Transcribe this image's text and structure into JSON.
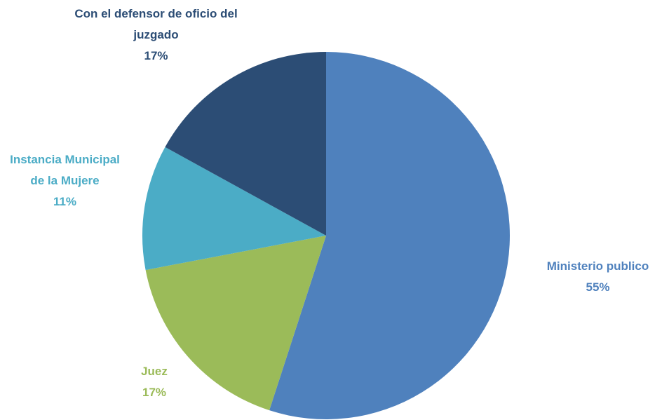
{
  "chart_data": {
    "type": "pie",
    "categories": [
      "Ministerio publico",
      "Juez",
      "Instancia Municipal de la Mujere",
      "Con el defensor de oficio del juzgado"
    ],
    "values": [
      55,
      17,
      11,
      17
    ],
    "value_labels": [
      "55%",
      "17%",
      "11%",
      "17%"
    ],
    "colors": [
      "#4f81bd",
      "#9bbb59",
      "#4bacc6",
      "#2c4d75"
    ]
  }
}
